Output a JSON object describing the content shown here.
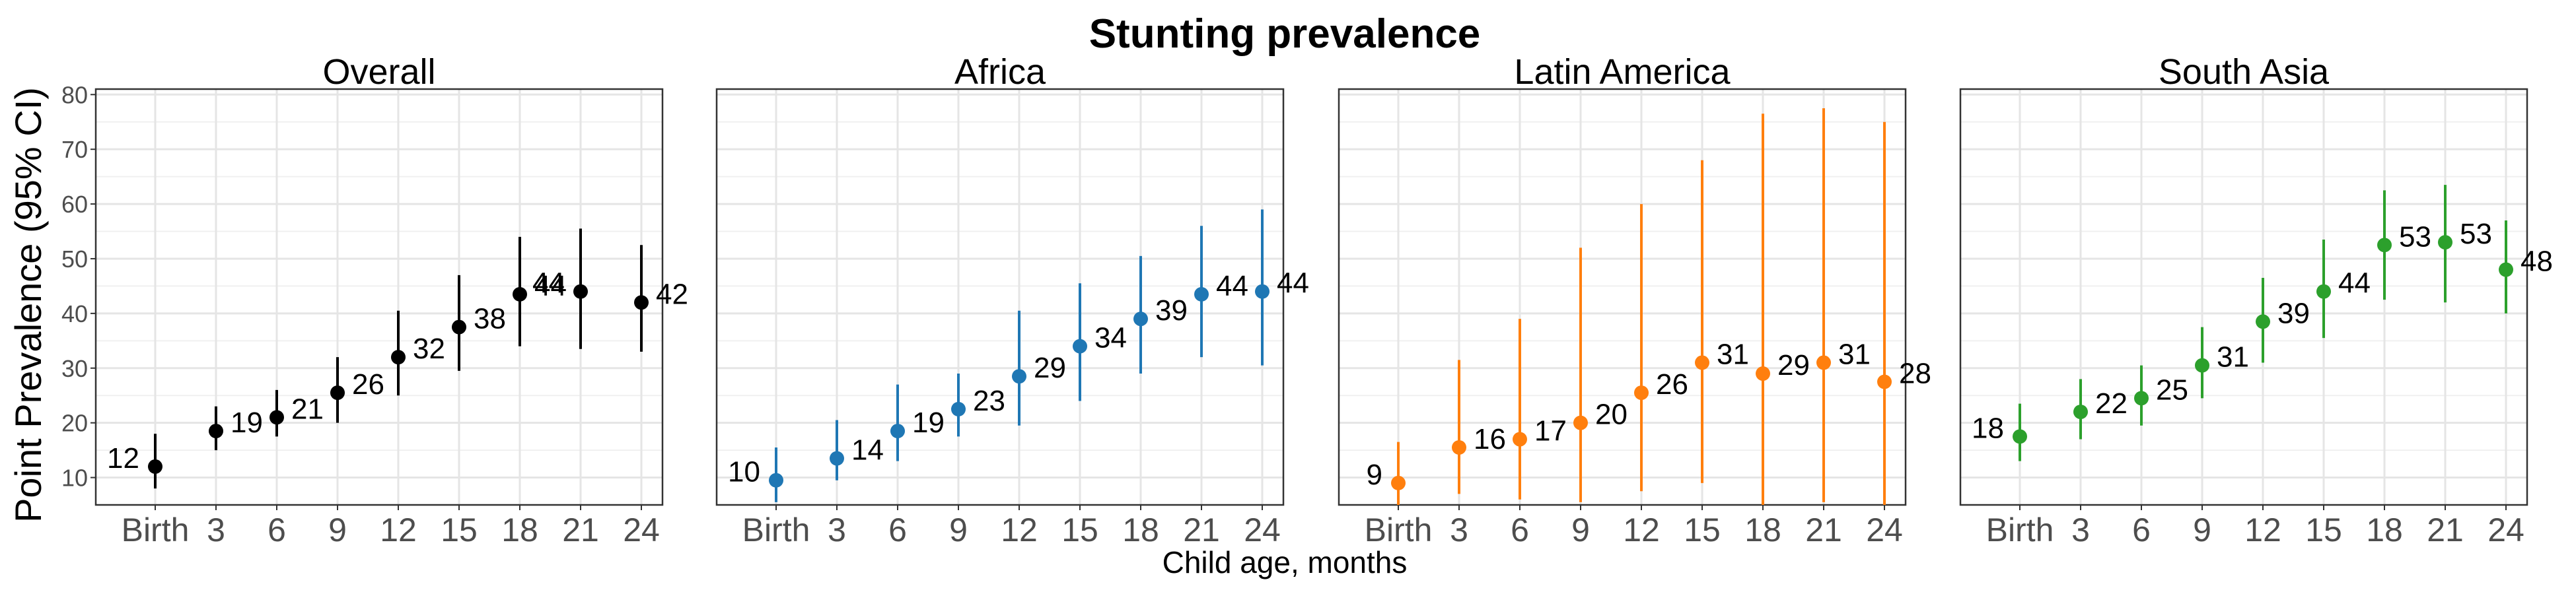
{
  "figure": {
    "title": "Stunting prevalence",
    "xlabel": "Child age, months",
    "ylabel": "Point Prevalence (95% CI)"
  },
  "chart_data": {
    "type": "scatter",
    "title": "Stunting prevalence",
    "xlabel": "Child age, months",
    "ylabel": "Point Prevalence (95% CI)",
    "categories": [
      "Birth",
      "3",
      "6",
      "9",
      "12",
      "15",
      "18",
      "21",
      "24"
    ],
    "ylim": [
      5,
      81
    ],
    "yticks": [
      10,
      20,
      30,
      40,
      50,
      60,
      70,
      80
    ],
    "grid": true,
    "panels": [
      {
        "name": "Overall",
        "color": "#000000",
        "values": [
          12,
          18.5,
          21,
          25.5,
          32,
          37.5,
          43.5,
          44,
          42
        ],
        "lower": [
          8,
          15,
          17.5,
          20,
          25,
          29.5,
          34,
          33.5,
          33
        ],
        "upper": [
          18,
          23,
          26,
          32,
          40.5,
          47,
          54,
          55.5,
          52.5
        ],
        "labels": [
          "12",
          "19",
          "21",
          "26",
          "32",
          "38",
          "44",
          "44",
          "42"
        ],
        "label_side": [
          "left",
          "right",
          "right",
          "right",
          "right",
          "right",
          "right",
          "left",
          ""
        ]
      },
      {
        "name": "Africa",
        "color": "#1f77b4",
        "values": [
          9.5,
          13.5,
          18.5,
          22.5,
          28.5,
          34,
          39,
          43.5,
          44
        ],
        "lower": [
          5.5,
          9.5,
          13,
          17.5,
          19.5,
          24,
          29,
          32,
          30.5
        ],
        "upper": [
          15.5,
          20.5,
          27,
          29,
          40.5,
          45.5,
          50.5,
          56,
          59
        ],
        "labels": [
          "10",
          "14",
          "19",
          "23",
          "29",
          "34",
          "39",
          "44",
          "44"
        ],
        "label_side": [
          "left",
          "right",
          "right",
          "right",
          "right",
          "right",
          "right",
          "right",
          ""
        ]
      },
      {
        "name": "Latin America",
        "color": "#ff7f0e",
        "values": [
          9,
          15.5,
          17,
          20,
          25.5,
          31,
          29,
          31,
          27.5
        ],
        "lower": [
          5,
          7,
          6,
          5.5,
          7.5,
          9,
          5,
          5.5,
          5
        ],
        "upper": [
          16.5,
          31.5,
          39,
          52,
          60,
          68,
          76.5,
          77.5,
          75
        ],
        "labels": [
          "9",
          "16",
          "17",
          "20",
          "26",
          "31",
          "29",
          "31",
          "28"
        ],
        "label_side": [
          "left",
          "right",
          "right",
          "right",
          "right",
          "right",
          "right",
          "right",
          ""
        ]
      },
      {
        "name": "South Asia",
        "color": "#2ca02c",
        "values": [
          17.5,
          22,
          24.5,
          30.5,
          38.5,
          44,
          52.5,
          53,
          48
        ],
        "lower": [
          13,
          17,
          19.5,
          24.5,
          31,
          35.5,
          42.5,
          42,
          40
        ],
        "upper": [
          23.5,
          28,
          30.5,
          37.5,
          46.5,
          53.5,
          62.5,
          63.5,
          57
        ],
        "labels": [
          "18",
          "22",
          "25",
          "31",
          "39",
          "44",
          "53",
          "53",
          "48"
        ],
        "label_side": [
          "left",
          "right",
          "right",
          "right",
          "right",
          "right",
          "right",
          "right",
          ""
        ]
      }
    ]
  }
}
